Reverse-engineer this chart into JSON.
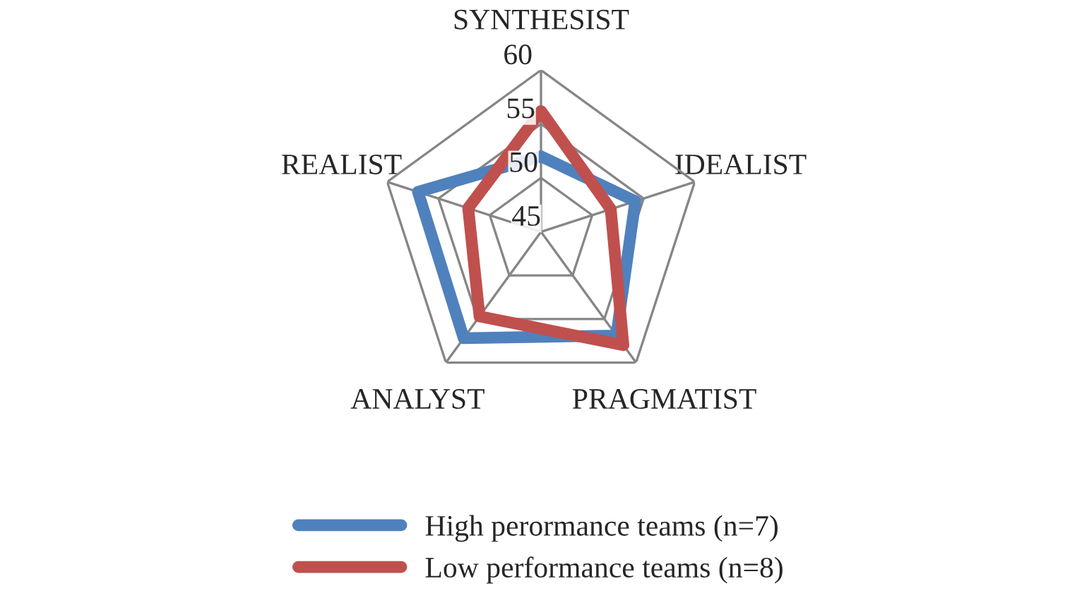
{
  "chart_data": {
    "type": "radar",
    "categories": [
      "SYNTHESIST",
      "IDEALIST",
      "PRAGMATIST",
      "ANALYST",
      "REALIST"
    ],
    "series": [
      {
        "name": "High perormance teams (n=7)",
        "color": "#4f81bd",
        "values": [
          52.0,
          54.2,
          56.9,
          57.2,
          57.0
        ]
      },
      {
        "name": "Low performance teams (n=8)",
        "color": "#c0504d",
        "values": [
          56.2,
          51.8,
          58.0,
          54.7,
          52.1
        ]
      }
    ],
    "ylim": [
      45,
      60
    ],
    "yticks": [
      45,
      50,
      55,
      60
    ],
    "grid": true,
    "legend": "bottom",
    "marker": "none",
    "line_style": "solid"
  }
}
